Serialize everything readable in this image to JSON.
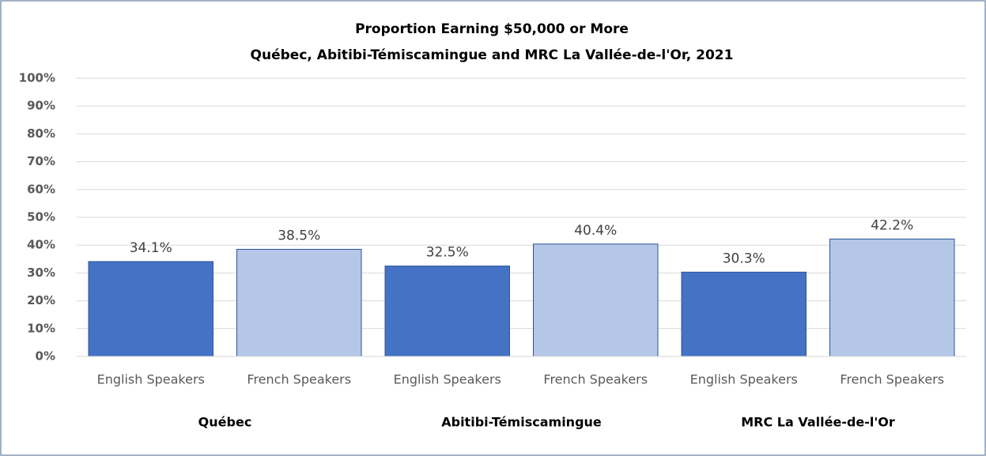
{
  "chart_data": {
    "type": "bar",
    "title": "Proportion Earning $50,000 or More",
    "subtitle": "Québec, Abitibi-Témiscamingue and MRC La Vallée-de-l'Or, 2021",
    "categories": [
      "Québec",
      "Abitibi-Témiscamingue",
      "MRC La Vallée-de-l'Or"
    ],
    "series": [
      {
        "name": "English Speakers",
        "color": "#4472c4",
        "values": [
          34.1,
          32.5,
          30.3
        ],
        "value_labels": [
          "34.1%",
          "32.5%",
          "30.3%"
        ]
      },
      {
        "name": "French Speakers",
        "color": "#b4c7e7",
        "values": [
          38.5,
          40.4,
          42.2
        ],
        "value_labels": [
          "38.5%",
          "40.4%",
          "42.2%"
        ]
      }
    ],
    "ylim": [
      0,
      100
    ],
    "yticks": [
      {
        "value": 0,
        "label": "0%"
      },
      {
        "value": 10,
        "label": "10%"
      },
      {
        "value": 20,
        "label": "20%"
      },
      {
        "value": 30,
        "label": "30%"
      },
      {
        "value": 40,
        "label": "40%"
      },
      {
        "value": 50,
        "label": "50%"
      },
      {
        "value": 60,
        "label": "60%"
      },
      {
        "value": 70,
        "label": "70%"
      },
      {
        "value": 80,
        "label": "80%"
      },
      {
        "value": 90,
        "label": "90%"
      },
      {
        "value": 100,
        "label": "100%"
      }
    ],
    "grid": true
  }
}
